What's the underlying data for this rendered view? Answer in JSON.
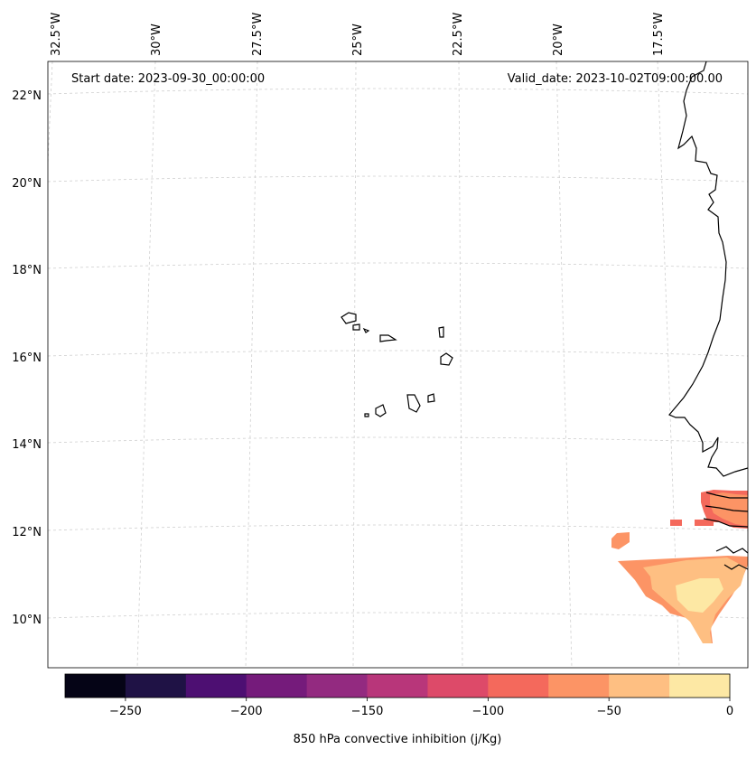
{
  "map": {
    "start_date_text": "Start date: 2023-09-30_00:00:00",
    "valid_date_text": "Valid_date: 2023-10-02T09:00:00.00",
    "lon_labels": [
      "32.5°W",
      "30°W",
      "27.5°W",
      "25°W",
      "22.5°W",
      "20°W",
      "17.5°W"
    ],
    "lat_labels": [
      "22°N",
      "20°N",
      "18°N",
      "16°N",
      "14°N",
      "12°N",
      "10°N"
    ],
    "features": [
      "Cape Verde islands",
      "West African coastline"
    ]
  },
  "colorbar": {
    "label": "850 hPa convective inhibition (j/Kg)",
    "tick_labels": [
      "−250",
      "−200",
      "−150",
      "−100",
      "−50",
      "0"
    ],
    "tick_values": [
      -250,
      -200,
      -150,
      -100,
      -50,
      0
    ],
    "range": [
      -275,
      0
    ],
    "levels": [
      -275,
      -250,
      -225,
      -200,
      -175,
      -150,
      -125,
      -100,
      -75,
      -50,
      -25,
      0
    ],
    "colors": [
      "#050416",
      "#1f1245",
      "#4d0f72",
      "#751b7b",
      "#932a80",
      "#b8367a",
      "#dd4a69",
      "#f4695c",
      "#fc9465",
      "#febf82",
      "#fde8a4"
    ]
  },
  "field_colors": {
    "minus_100_to_75": "#f4695c",
    "minus_75_to_50": "#fc9465",
    "minus_50_to_25": "#febf82",
    "minus_25_to_0": "#fde8a4"
  }
}
